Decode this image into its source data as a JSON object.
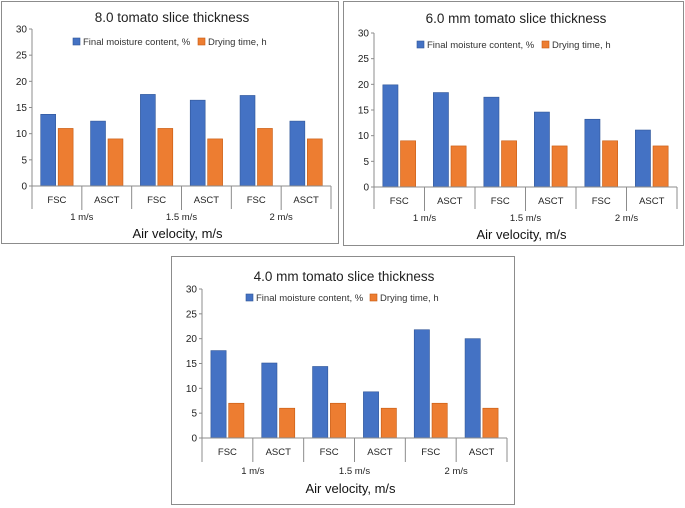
{
  "colors": {
    "moisture": "#4472c4",
    "drying": "#ed7d31",
    "moisture_dark": "#2f5597",
    "drying_dark": "#c55a11"
  },
  "chart_data": [
    {
      "type": "bar",
      "title": "8.0 tomato slice thickness",
      "xlabel": "Air velocity, m/s",
      "ylabel": "",
      "ylim": [
        0,
        30
      ],
      "yticks": [
        "0",
        "5",
        "10",
        "15",
        "20",
        "25",
        "30"
      ],
      "categories": [
        "FSC",
        "ASCT",
        "FSC",
        "ASCT",
        "FSC",
        "ASCT"
      ],
      "groups": [
        "1 m/s",
        "1.5 m/s",
        "2 m/s"
      ],
      "series": [
        {
          "name": "Final moisture content, %",
          "values": [
            13.7,
            12.4,
            17.5,
            16.4,
            17.3,
            12.4
          ]
        },
        {
          "name": "Drying time, h",
          "values": [
            11,
            9,
            11,
            9,
            11,
            9
          ]
        }
      ]
    },
    {
      "type": "bar",
      "title": "6.0 mm tomato slice thickness",
      "xlabel": "Air velocity, m/s",
      "ylabel": "",
      "ylim": [
        0,
        30
      ],
      "yticks": [
        "0",
        "5",
        "10",
        "15",
        "20",
        "25",
        "30"
      ],
      "categories": [
        "FSC",
        "ASCT",
        "FSC",
        "ASCT",
        "FSC",
        "ASCT"
      ],
      "groups": [
        "1 m/s",
        "1.5 m/s",
        "2 m/s"
      ],
      "series": [
        {
          "name": "Final moisture content, %",
          "values": [
            19.9,
            18.4,
            17.5,
            14.6,
            13.2,
            11.1
          ]
        },
        {
          "name": "Drying time, h",
          "values": [
            9,
            8,
            9,
            8,
            9,
            8
          ]
        }
      ]
    },
    {
      "type": "bar",
      "title": "4.0 mm tomato slice thickness",
      "xlabel": "Air velocity, m/s",
      "ylabel": "",
      "ylim": [
        0,
        30
      ],
      "yticks": [
        "0",
        "5",
        "10",
        "15",
        "20",
        "25",
        "30"
      ],
      "categories": [
        "FSC",
        "ASCT",
        "FSC",
        "ASCT",
        "FSC",
        "ASCT"
      ],
      "groups": [
        "1 m/s",
        "1.5 m/s",
        "2 m/s"
      ],
      "series": [
        {
          "name": "Final moisture content, %",
          "values": [
            17.6,
            15.1,
            14.4,
            9.3,
            21.8,
            20.0
          ]
        },
        {
          "name": "Drying time, h",
          "values": [
            7,
            6,
            7,
            6,
            7,
            6
          ]
        }
      ]
    }
  ]
}
